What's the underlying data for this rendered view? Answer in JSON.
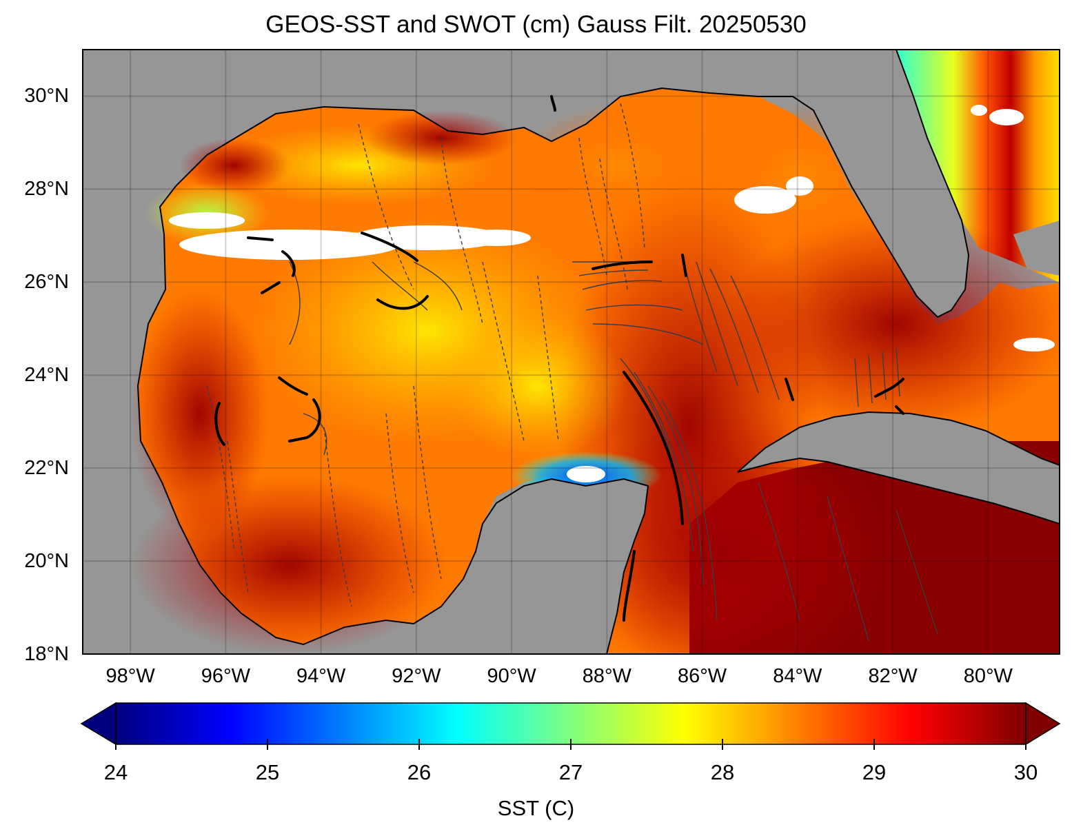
{
  "title": "GEOS-SST  and SWOT (cm) Gauss Filt. 20250530",
  "map": {
    "lon_range": [
      -99,
      -78.5
    ],
    "lat_range": [
      18,
      31
    ],
    "lat_labels": [
      {
        "lat": 30,
        "text": "30°N"
      },
      {
        "lat": 28,
        "text": "28°N"
      },
      {
        "lat": 26,
        "text": "26°N"
      },
      {
        "lat": 24,
        "text": "24°N"
      },
      {
        "lat": 22,
        "text": "22°N"
      },
      {
        "lat": 20,
        "text": "20°N"
      },
      {
        "lat": 18,
        "text": "18°N"
      }
    ],
    "lon_labels": [
      {
        "lon": -98,
        "text": "98°W"
      },
      {
        "lon": -96,
        "text": "96°W"
      },
      {
        "lon": -94,
        "text": "94°W"
      },
      {
        "lon": -92,
        "text": "92°W"
      },
      {
        "lon": -90,
        "text": "90°W"
      },
      {
        "lon": -88,
        "text": "88°W"
      },
      {
        "lon": -86,
        "text": "86°W"
      },
      {
        "lon": -84,
        "text": "84°W"
      },
      {
        "lon": -82,
        "text": "82°W"
      },
      {
        "lon": -80,
        "text": "80°W"
      }
    ],
    "land_color": "#969696",
    "no_data_color": "#ffffff",
    "contour_color": "#3c3c46"
  },
  "colorbar": {
    "label": "SST (C)",
    "min": 24,
    "max": 30,
    "extend": "both",
    "ticks": [
      {
        "value": 24,
        "text": "24"
      },
      {
        "value": 25,
        "text": "25"
      },
      {
        "value": 26,
        "text": "26"
      },
      {
        "value": 27,
        "text": "27"
      },
      {
        "value": 28,
        "text": "28"
      },
      {
        "value": 29,
        "text": "29"
      },
      {
        "value": 30,
        "text": "30"
      }
    ],
    "colormap": "jet",
    "stops": [
      "#00007f",
      "#0000ff",
      "#007fff",
      "#00ffff",
      "#7fff7f",
      "#ffff00",
      "#ff7f00",
      "#ff0000",
      "#7f0000"
    ]
  }
}
